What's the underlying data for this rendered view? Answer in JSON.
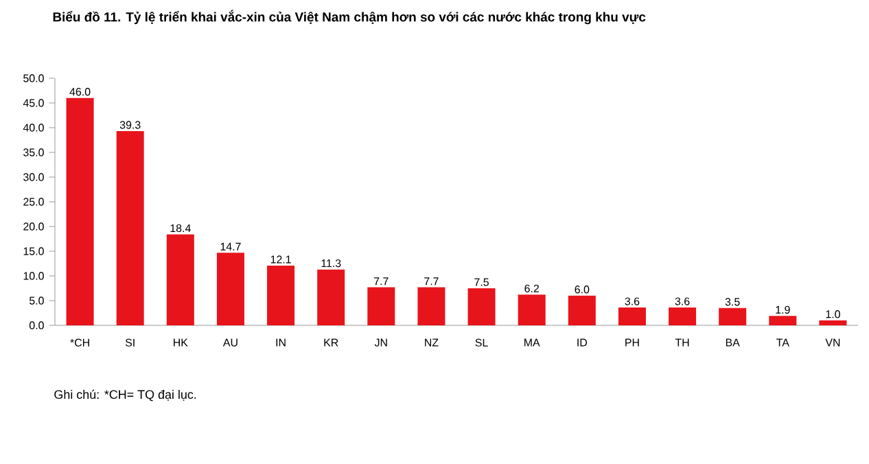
{
  "chart_data": {
    "type": "bar",
    "title": "Biểu đồ 11. Tỷ lệ triển khai vắc-xin của Việt Nam chậm hơn so với các nước khác trong khu vực",
    "categories": [
      "*CH",
      "SI",
      "HK",
      "AU",
      "IN",
      "KR",
      "JN",
      "NZ",
      "SL",
      "MA",
      "ID",
      "PH",
      "TH",
      "BA",
      "TA",
      "VN"
    ],
    "values": [
      46.0,
      39.3,
      18.4,
      14.7,
      12.1,
      11.3,
      7.7,
      7.7,
      7.5,
      6.2,
      6.0,
      3.6,
      3.6,
      3.5,
      1.9,
      1.0
    ],
    "value_labels": [
      "46.0",
      "39.3",
      "18.4",
      "14.7",
      "12.1",
      "11.3",
      "7.7",
      "7.7",
      "7.5",
      "6.2",
      "6.0",
      "3.6",
      "3.6",
      "3.5",
      "1.9",
      "1.0"
    ],
    "color": "#e8141b",
    "ylim": [
      0,
      50
    ],
    "yticks": [
      {
        "value": 0,
        "label": "0.0"
      },
      {
        "value": 5,
        "label": "5.0"
      },
      {
        "value": 10,
        "label": "10.0"
      },
      {
        "value": 15,
        "label": "15.0"
      },
      {
        "value": 20,
        "label": "20.0"
      },
      {
        "value": 25,
        "label": "25.0"
      },
      {
        "value": 30,
        "label": "30.0"
      },
      {
        "value": 35,
        "label": "35.0"
      },
      {
        "value": 40,
        "label": "40.0"
      },
      {
        "value": 45,
        "label": "45.0"
      },
      {
        "value": 50,
        "label": "50.0"
      }
    ],
    "grid": false,
    "annotations": [
      "Ghi chú: *CH= TQ đại lục."
    ]
  }
}
